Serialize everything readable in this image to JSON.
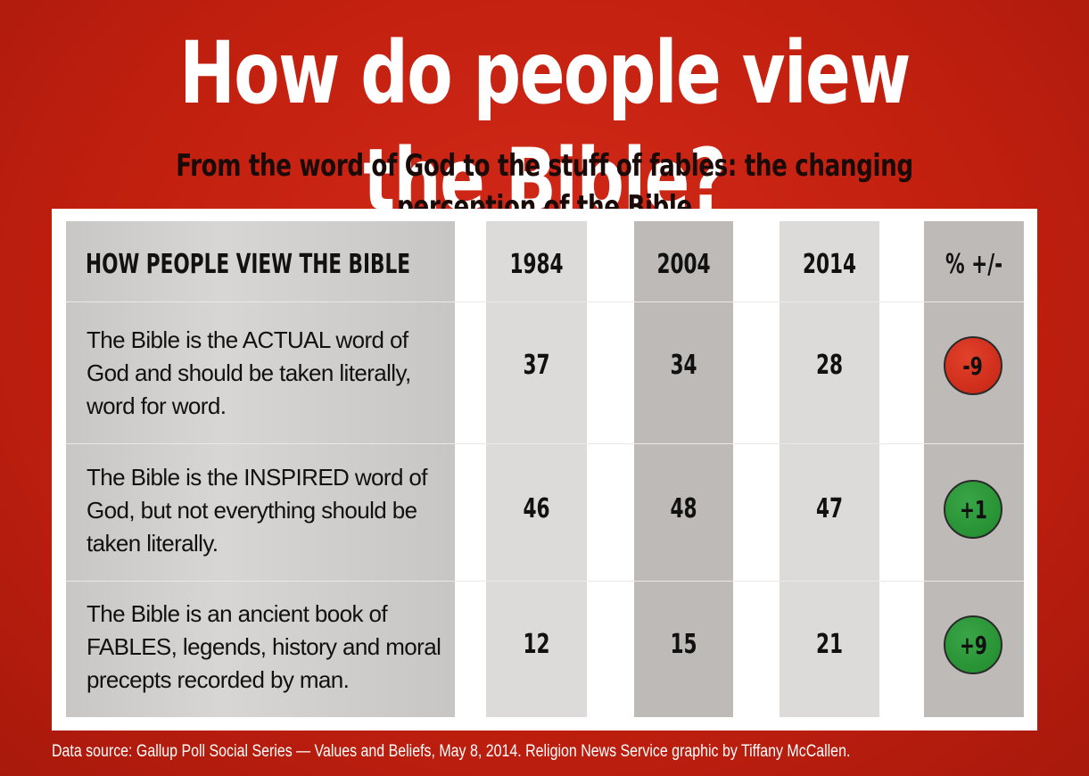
{
  "title": "How do people view the Bible?",
  "subtitle": "From the word of God to the stuff of fables: the changing perception of the Bible",
  "source": "Data source: Gallup Poll Social Series — Values and Beliefs, May 8, 2014. Religion News Service graphic by Tiffany McCallen.",
  "colors": {
    "background": "#c2200f",
    "negative": "#d23320",
    "positive": "#2b9638"
  },
  "chart_data": {
    "type": "table",
    "title": "How do people view the Bible?",
    "subtitle": "From the word of God to the stuff of fables: the changing perception of the Bible",
    "columns": [
      "HOW PEOPLE VIEW THE BIBLE",
      "1984",
      "2004",
      "2014",
      "% +/-"
    ],
    "rows": [
      {
        "label": "The Bible is the ACTUAL word of God and should be taken literally, word for word.",
        "v1984": "37",
        "v2004": "34",
        "v2014": "28",
        "change": "-9",
        "direction": "negative"
      },
      {
        "label": "The Bible is the INSPIRED word of God, but not everything should be taken literally.",
        "v1984": "46",
        "v2004": "48",
        "v2014": "47",
        "change": "+1",
        "direction": "positive"
      },
      {
        "label": "The Bible is an ancient book of FABLES, legends, history and moral precepts recorded by man.",
        "v1984": "12",
        "v2004": "15",
        "v2014": "21",
        "change": "+9",
        "direction": "positive"
      }
    ]
  }
}
